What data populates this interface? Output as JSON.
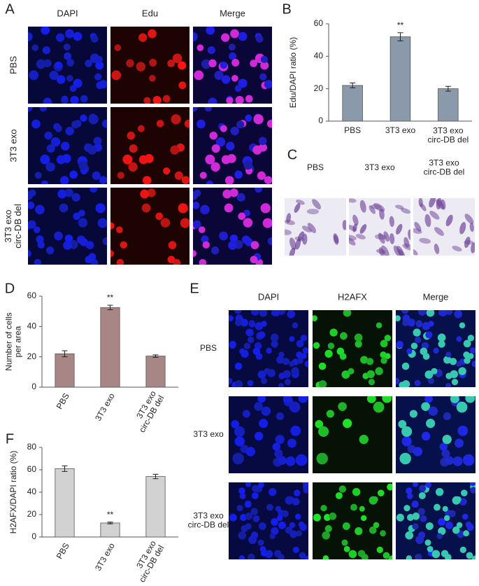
{
  "panel_labels": [
    "A",
    "B",
    "C",
    "D",
    "E",
    "F"
  ],
  "panel_a": {
    "columns": [
      "DAPI",
      "Edu",
      "Merge"
    ],
    "rows": [
      "PBS",
      "3T3 exo",
      "3T3 exo\ncirc-DB del"
    ]
  },
  "panel_c": {
    "columns": [
      "PBS",
      "3T3 exo",
      "3T3 exo\ncirc-DB del"
    ]
  },
  "panel_e": {
    "columns": [
      "DAPI",
      "H2AFX",
      "Merge"
    ],
    "rows": [
      "PBS",
      "3T3 exo",
      "3T3 exo\ncirc-DB del"
    ]
  },
  "chart_data": [
    {
      "type": "bar",
      "ylabel": "Edu/DAPI ratio (%)",
      "categories": [
        "PBS",
        "3T3 exo",
        "3T3 exo\ncirc-DB del"
      ],
      "values": [
        22,
        52,
        20
      ],
      "errors": [
        1.5,
        2.5,
        1.5
      ],
      "significance": [
        null,
        "**",
        null
      ],
      "color": "#8a9aab",
      "ylim": [
        0,
        60
      ],
      "yticks": [
        0,
        20,
        40,
        60
      ],
      "xtick_rotation": 0
    },
    {
      "type": "bar",
      "ylabel": "Number of cells\nper area",
      "categories": [
        "PBS",
        "3T3 exo",
        "3T3 exo\ncirc-DB del"
      ],
      "values": [
        22,
        52.5,
        20.5
      ],
      "errors": [
        2,
        1.5,
        0.8
      ],
      "significance": [
        null,
        "**",
        null
      ],
      "color": "#a88686",
      "ylim": [
        0,
        60
      ],
      "yticks": [
        0,
        20,
        40,
        60
      ],
      "xtick_rotation": -60
    },
    {
      "type": "bar",
      "ylabel": "H2AFX/DAPI ratio (%)",
      "categories": [
        "PBS",
        "3T3 exo",
        "3T3 exo\ncirc-DB del"
      ],
      "values": [
        61,
        12.5,
        54
      ],
      "errors": [
        2.5,
        0.8,
        2
      ],
      "significance": [
        null,
        "**",
        null
      ],
      "color": "#d2d2d2",
      "ylim": [
        0,
        80
      ],
      "yticks": [
        0,
        20,
        40,
        60,
        80
      ],
      "xtick_rotation": -60
    }
  ]
}
